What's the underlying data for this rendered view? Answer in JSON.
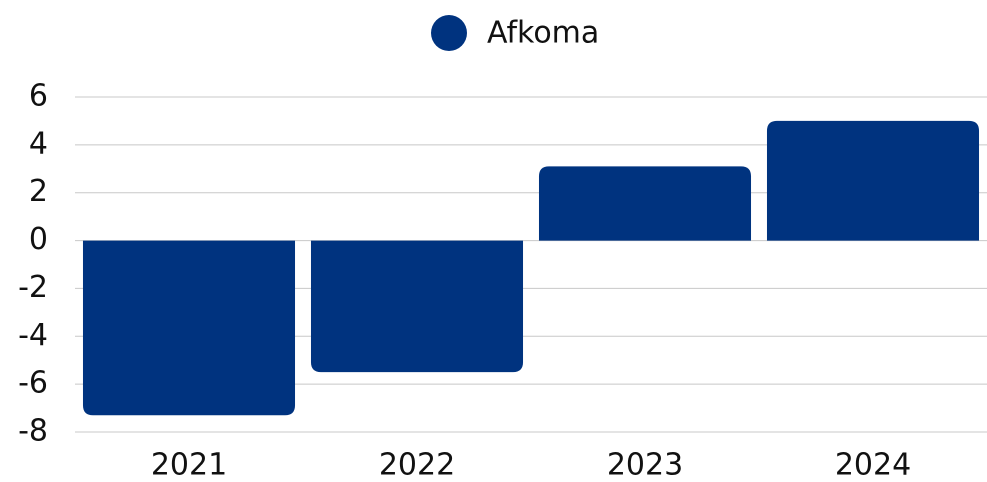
{
  "chart_data": {
    "type": "bar",
    "series": [
      {
        "name": "Afkoma",
        "color": "#00337f",
        "values": [
          -7.3,
          -5.5,
          3.1,
          5.0
        ]
      }
    ],
    "categories": [
      "2021",
      "2022",
      "2023",
      "2024"
    ],
    "ylim": [
      -8,
      6
    ],
    "yticks": [
      -8,
      -6,
      -4,
      -2,
      0,
      2,
      4,
      6
    ],
    "grid": true,
    "legend": "top"
  }
}
